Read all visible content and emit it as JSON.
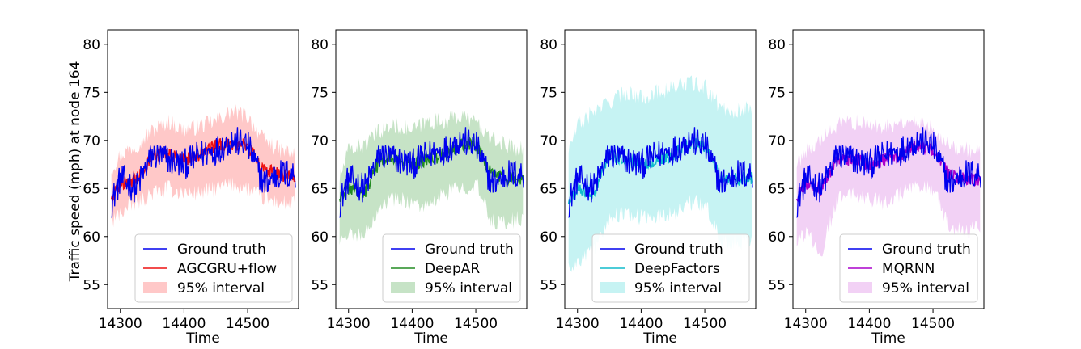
{
  "figure": {
    "ylabel": "Traffic speed (mph) at node 164",
    "ground_color": "#0000ee"
  },
  "chart_data": [
    {
      "type": "line",
      "title": "",
      "xlabel": "Time",
      "ylabel": "Traffic speed (mph) at node 164",
      "xlim": [
        14280,
        14580
      ],
      "ylim": [
        52.5,
        81.5
      ],
      "xticks": [
        14300,
        14400,
        14500
      ],
      "yticks": [
        55,
        60,
        65,
        70,
        75,
        80
      ],
      "x": [
        14286,
        14300,
        14325,
        14350,
        14375,
        14400,
        14425,
        14450,
        14475,
        14500,
        14525,
        14550,
        14575
      ],
      "series": [
        {
          "name": "Ground truth",
          "color": "#0000ee",
          "values": [
            63.5,
            66.0,
            65.0,
            68.5,
            68.0,
            67.5,
            68.5,
            69.0,
            70.0,
            69.5,
            65.5,
            66.5,
            66.5
          ]
        },
        {
          "name": "AGCGRU+flow",
          "color": "#ee1111",
          "values": [
            64.0,
            65.5,
            66.0,
            68.5,
            68.5,
            68.0,
            68.5,
            69.5,
            69.5,
            69.5,
            67.0,
            66.5,
            66.0
          ]
        }
      ],
      "band": {
        "name": "95% interval",
        "color": "#ffaaaa",
        "lower": [
          61.5,
          62.5,
          63.5,
          64.5,
          65.0,
          64.5,
          64.5,
          65.0,
          65.5,
          65.0,
          64.0,
          63.5,
          63.5
        ],
        "upper": [
          67.0,
          68.5,
          69.5,
          71.0,
          72.0,
          71.0,
          71.5,
          72.0,
          73.0,
          72.5,
          70.0,
          69.0,
          68.5
        ]
      },
      "legend": {
        "position": "lower-right",
        "entries": [
          "Ground truth",
          "AGCGRU+flow",
          "95% interval"
        ]
      }
    },
    {
      "type": "line",
      "title": "",
      "xlabel": "Time",
      "ylabel": "",
      "xlim": [
        14280,
        14580
      ],
      "ylim": [
        52.5,
        81.5
      ],
      "xticks": [
        14300,
        14400,
        14500
      ],
      "yticks": [
        55,
        60,
        65,
        70,
        75,
        80
      ],
      "x": [
        14286,
        14300,
        14325,
        14350,
        14375,
        14400,
        14425,
        14450,
        14475,
        14500,
        14525,
        14550,
        14575
      ],
      "series": [
        {
          "name": "Ground truth",
          "color": "#0000ee",
          "values": [
            63.5,
            66.0,
            65.0,
            68.5,
            68.0,
            67.5,
            68.5,
            69.0,
            70.0,
            69.5,
            65.5,
            66.5,
            66.5
          ]
        },
        {
          "name": "DeepAR",
          "color": "#228b22",
          "values": [
            64.0,
            65.0,
            64.5,
            68.0,
            68.0,
            67.5,
            68.0,
            68.5,
            69.5,
            69.5,
            66.5,
            66.0,
            66.0
          ]
        }
      ],
      "band": {
        "name": "95% interval",
        "color": "#a8d4a8",
        "lower": [
          59.5,
          60.5,
          60.0,
          63.5,
          64.0,
          63.5,
          63.0,
          64.5,
          65.0,
          65.5,
          61.5,
          61.5,
          62.0
        ],
        "upper": [
          66.0,
          69.0,
          69.5,
          71.0,
          71.5,
          71.0,
          72.0,
          72.0,
          72.5,
          72.0,
          70.0,
          69.5,
          69.0
        ]
      },
      "legend": {
        "position": "lower-right",
        "entries": [
          "Ground truth",
          "DeepAR",
          "95% interval"
        ]
      }
    },
    {
      "type": "line",
      "title": "",
      "xlabel": "Time",
      "ylabel": "",
      "xlim": [
        14280,
        14580
      ],
      "ylim": [
        52.5,
        81.5
      ],
      "xticks": [
        14300,
        14400,
        14500
      ],
      "yticks": [
        55,
        60,
        65,
        70,
        75,
        80
      ],
      "x": [
        14286,
        14300,
        14325,
        14350,
        14375,
        14400,
        14425,
        14450,
        14475,
        14500,
        14525,
        14550,
        14575
      ],
      "series": [
        {
          "name": "Ground truth",
          "color": "#0000ee",
          "values": [
            63.5,
            66.0,
            65.0,
            68.5,
            68.0,
            67.5,
            68.5,
            69.0,
            70.0,
            69.5,
            65.5,
            66.5,
            66.5
          ]
        },
        {
          "name": "DeepFactors",
          "color": "#11bbcc",
          "values": [
            63.5,
            65.0,
            64.5,
            68.5,
            68.0,
            67.5,
            68.0,
            68.5,
            69.5,
            69.5,
            66.0,
            66.0,
            66.0
          ]
        }
      ],
      "band": {
        "name": "95% interval",
        "color": "#a8ecec",
        "lower": [
          56.5,
          57.5,
          58.5,
          62.0,
          62.5,
          62.0,
          62.0,
          62.5,
          63.5,
          63.5,
          59.5,
          59.5,
          59.5
        ],
        "upper": [
          69.0,
          71.5,
          73.0,
          74.0,
          75.0,
          74.5,
          75.0,
          75.5,
          76.0,
          75.5,
          73.5,
          73.0,
          73.5
        ]
      },
      "legend": {
        "position": "lower-right",
        "entries": [
          "Ground truth",
          "DeepFactors",
          "95% interval"
        ]
      }
    },
    {
      "type": "line",
      "title": "",
      "xlabel": "Time",
      "ylabel": "",
      "xlim": [
        14280,
        14580
      ],
      "ylim": [
        52.5,
        81.5
      ],
      "xticks": [
        14300,
        14400,
        14500
      ],
      "yticks": [
        55,
        60,
        65,
        70,
        75,
        80
      ],
      "x": [
        14286,
        14300,
        14325,
        14350,
        14375,
        14400,
        14425,
        14450,
        14475,
        14500,
        14525,
        14550,
        14575
      ],
      "series": [
        {
          "name": "Ground truth",
          "color": "#0000ee",
          "values": [
            63.5,
            66.0,
            65.0,
            68.5,
            68.0,
            67.5,
            68.5,
            69.0,
            70.0,
            69.5,
            65.5,
            66.5,
            66.5
          ]
        },
        {
          "name": "MQRNN",
          "color": "#aa00cc",
          "values": [
            64.0,
            65.5,
            65.0,
            68.0,
            68.0,
            67.5,
            68.0,
            68.5,
            69.5,
            69.0,
            66.5,
            66.0,
            66.0
          ]
        }
      ],
      "band": {
        "name": "95% interval",
        "color": "#ebb8ef",
        "lower": [
          59.0,
          60.5,
          58.5,
          64.0,
          64.5,
          64.0,
          63.5,
          64.5,
          65.0,
          65.0,
          61.0,
          60.5,
          61.0
        ],
        "upper": [
          67.5,
          69.0,
          70.0,
          71.5,
          72.0,
          71.5,
          71.5,
          72.0,
          72.0,
          71.5,
          69.5,
          69.0,
          69.0
        ]
      },
      "legend": {
        "position": "lower-right",
        "entries": [
          "Ground truth",
          "MQRNN",
          "95% interval"
        ]
      }
    }
  ]
}
